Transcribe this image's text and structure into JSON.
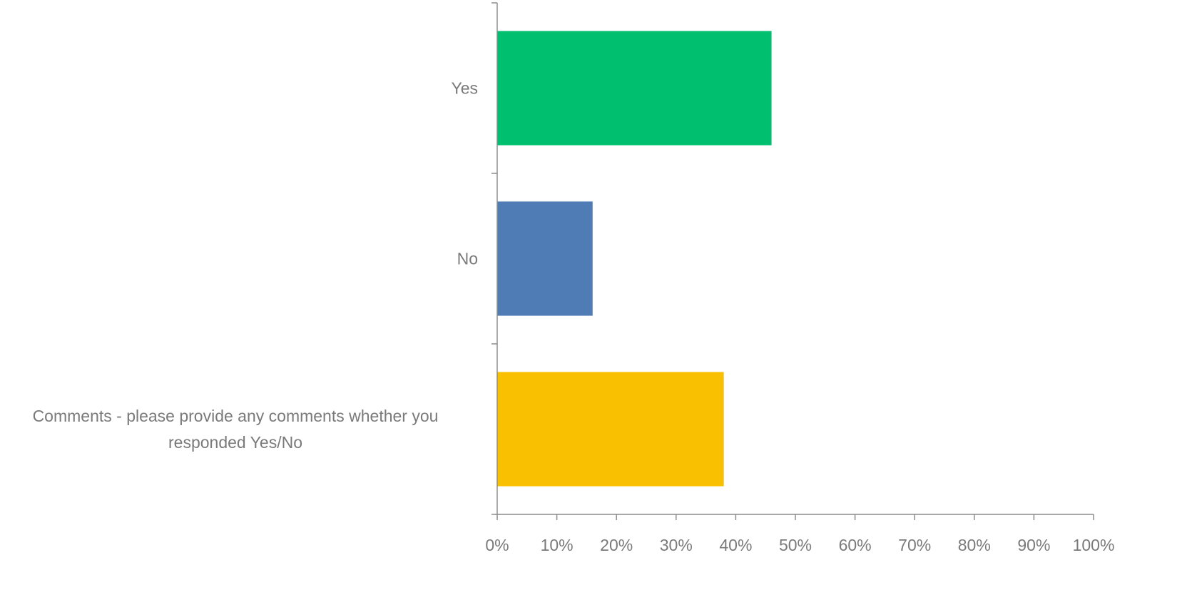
{
  "chart_data": {
    "type": "bar",
    "orientation": "horizontal",
    "categories": [
      "Yes",
      "No",
      "Comments - please provide any comments whether you responded Yes/No"
    ],
    "values": [
      46,
      16,
      38
    ],
    "bar_colors": [
      "#00BF6F",
      "#507CB6",
      "#F8C000"
    ],
    "xlim": [
      0,
      100
    ],
    "x_ticks": [
      "0%",
      "10%",
      "20%",
      "30%",
      "40%",
      "50%",
      "60%",
      "70%",
      "80%",
      "90%",
      "100%"
    ],
    "grid": false,
    "legend": "none",
    "title": "",
    "xlabel": "",
    "ylabel": ""
  },
  "colors": {
    "axis": "#8c8c8c",
    "text": "#7a7a7a",
    "background": "#ffffff"
  }
}
